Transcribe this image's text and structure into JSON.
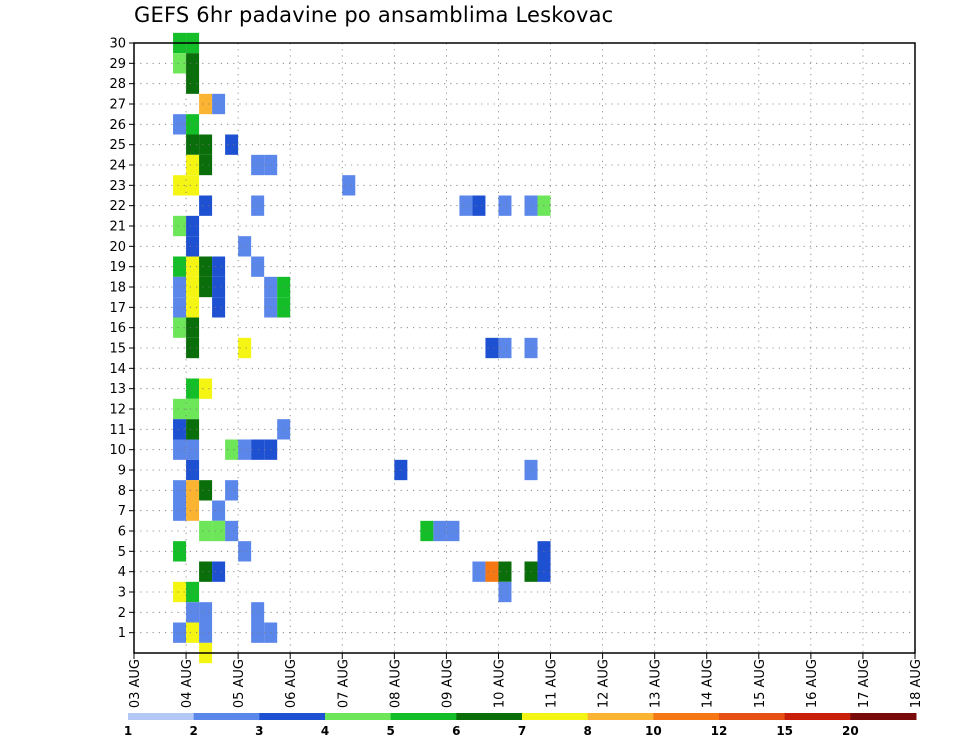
{
  "chart_data": {
    "type": "heatmap",
    "title": "GEFS 6hr padavine po ansamblima Leskovac",
    "xlabel": "",
    "ylabel": "",
    "x_ticks": [
      "03 AUG",
      "04 AUG",
      "05 AUG",
      "06 AUG",
      "07 AUG",
      "08 AUG",
      "09 AUG",
      "10 AUG",
      "11 AUG",
      "12 AUG",
      "13 AUG",
      "14 AUG",
      "15 AUG",
      "16 AUG",
      "17 AUG",
      "18 AUG"
    ],
    "x_range_days": [
      0,
      15
    ],
    "x_step": "6hr",
    "y_ticks": [
      1,
      2,
      3,
      4,
      5,
      6,
      7,
      8,
      9,
      10,
      11,
      12,
      13,
      14,
      15,
      16,
      17,
      18,
      19,
      20,
      21,
      22,
      23,
      24,
      25,
      26,
      27,
      28,
      29,
      30
    ],
    "y_range": [
      0,
      30
    ],
    "grid": true,
    "legend": {
      "placement": "bottom",
      "labels": [
        "1",
        "2",
        "3",
        "4",
        "5",
        "6",
        "7",
        "8",
        "10",
        "12",
        "15",
        "20"
      ],
      "colors": [
        "#b4c8f5",
        "#5b87eb",
        "#1e50d2",
        "#6ee65a",
        "#14be28",
        "#0a6e0a",
        "#f5f514",
        "#fab432",
        "#f57814",
        "#e65014",
        "#c81e0a",
        "#780a0a"
      ]
    },
    "cells": [
      [
        3,
        30,
        4
      ],
      [
        4,
        30,
        4
      ],
      [
        3,
        29,
        3
      ],
      [
        4,
        29,
        5
      ],
      [
        4,
        28,
        5
      ],
      [
        5,
        27,
        7
      ],
      [
        6,
        27,
        1
      ],
      [
        3,
        26,
        1
      ],
      [
        4,
        26,
        4
      ],
      [
        4,
        25,
        5
      ],
      [
        5,
        25,
        5
      ],
      [
        7,
        25,
        2
      ],
      [
        4,
        24,
        6
      ],
      [
        5,
        24,
        5
      ],
      [
        9,
        24,
        1
      ],
      [
        10,
        24,
        1
      ],
      [
        3,
        23,
        6
      ],
      [
        4,
        23,
        6
      ],
      [
        16,
        23,
        1
      ],
      [
        5,
        22,
        2
      ],
      [
        9,
        22,
        1
      ],
      [
        25,
        22,
        1
      ],
      [
        26,
        22,
        2
      ],
      [
        28,
        22,
        1
      ],
      [
        30,
        22,
        1
      ],
      [
        31,
        22,
        3
      ],
      [
        3,
        21,
        3
      ],
      [
        4,
        21,
        2
      ],
      [
        4,
        20,
        2
      ],
      [
        8,
        20,
        1
      ],
      [
        3,
        19,
        4
      ],
      [
        4,
        19,
        6
      ],
      [
        5,
        19,
        5
      ],
      [
        6,
        19,
        2
      ],
      [
        9,
        19,
        1
      ],
      [
        3,
        18,
        1
      ],
      [
        4,
        18,
        6
      ],
      [
        5,
        18,
        5
      ],
      [
        6,
        18,
        2
      ],
      [
        10,
        18,
        1
      ],
      [
        11,
        18,
        4
      ],
      [
        3,
        17,
        1
      ],
      [
        4,
        17,
        6
      ],
      [
        6,
        17,
        2
      ],
      [
        10,
        17,
        1
      ],
      [
        11,
        17,
        4
      ],
      [
        3,
        16,
        3
      ],
      [
        4,
        16,
        5
      ],
      [
        4,
        15,
        5
      ],
      [
        8,
        15,
        6
      ],
      [
        27,
        15,
        2
      ],
      [
        28,
        15,
        1
      ],
      [
        30,
        15,
        1
      ],
      [
        4,
        13,
        4
      ],
      [
        5,
        13,
        6
      ],
      [
        3,
        12,
        3
      ],
      [
        4,
        12,
        3
      ],
      [
        3,
        11,
        2
      ],
      [
        4,
        11,
        5
      ],
      [
        11,
        11,
        1
      ],
      [
        3,
        10,
        1
      ],
      [
        4,
        10,
        1
      ],
      [
        7,
        10,
        3
      ],
      [
        8,
        10,
        1
      ],
      [
        9,
        10,
        2
      ],
      [
        10,
        10,
        2
      ],
      [
        4,
        9,
        2
      ],
      [
        20,
        9,
        2
      ],
      [
        30,
        9,
        1
      ],
      [
        3,
        8,
        1
      ],
      [
        4,
        8,
        7
      ],
      [
        5,
        8,
        5
      ],
      [
        7,
        8,
        1
      ],
      [
        3,
        7,
        1
      ],
      [
        4,
        7,
        7
      ],
      [
        6,
        7,
        1
      ],
      [
        5,
        6,
        3
      ],
      [
        6,
        6,
        3
      ],
      [
        7,
        6,
        1
      ],
      [
        22,
        6,
        4
      ],
      [
        23,
        6,
        1
      ],
      [
        24,
        6,
        1
      ],
      [
        3,
        5,
        4
      ],
      [
        8,
        5,
        1
      ],
      [
        31,
        5,
        2
      ],
      [
        5,
        4,
        5
      ],
      [
        6,
        4,
        2
      ],
      [
        26,
        4,
        1
      ],
      [
        27,
        4,
        8
      ],
      [
        28,
        4,
        5
      ],
      [
        30,
        4,
        5
      ],
      [
        31,
        4,
        2
      ],
      [
        3,
        3,
        6
      ],
      [
        4,
        3,
        4
      ],
      [
        28,
        3,
        1
      ],
      [
        4,
        2,
        1
      ],
      [
        5,
        2,
        1
      ],
      [
        9,
        2,
        1
      ],
      [
        3,
        1,
        1
      ],
      [
        4,
        1,
        6
      ],
      [
        5,
        1,
        1
      ],
      [
        9,
        1,
        1
      ],
      [
        10,
        1,
        1
      ],
      [
        5,
        0,
        6
      ]
    ]
  }
}
